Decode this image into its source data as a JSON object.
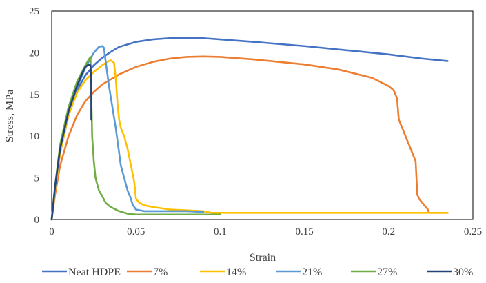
{
  "chart_data": {
    "type": "line",
    "title": "",
    "xlabel": "Strain",
    "ylabel": "Stress, MPa",
    "xlim": [
      0,
      0.25
    ],
    "ylim": [
      0,
      25
    ],
    "xticks": [
      0,
      0.05,
      0.1,
      0.15,
      0.2,
      0.25
    ],
    "xtick_labels": [
      "0",
      "0.05",
      "0.1",
      "0.15",
      "0.2",
      "0.25"
    ],
    "yticks": [
      0,
      5,
      10,
      15,
      20,
      25
    ],
    "ytick_labels": [
      "0",
      "5",
      "10",
      "15",
      "20",
      "25"
    ],
    "grid": false,
    "legend_position": "bottom",
    "series": [
      {
        "name": "Neat HDPE",
        "color": "#4472C4",
        "points": [
          [
            0,
            0
          ],
          [
            0.002,
            3.5
          ],
          [
            0.005,
            8
          ],
          [
            0.01,
            12.5
          ],
          [
            0.015,
            15.5
          ],
          [
            0.02,
            17.3
          ],
          [
            0.025,
            18.5
          ],
          [
            0.03,
            19.4
          ],
          [
            0.035,
            20.1
          ],
          [
            0.04,
            20.7
          ],
          [
            0.05,
            21.3
          ],
          [
            0.06,
            21.6
          ],
          [
            0.07,
            21.75
          ],
          [
            0.08,
            21.8
          ],
          [
            0.09,
            21.75
          ],
          [
            0.1,
            21.6
          ],
          [
            0.12,
            21.3
          ],
          [
            0.15,
            20.8
          ],
          [
            0.18,
            20.2
          ],
          [
            0.2,
            19.8
          ],
          [
            0.22,
            19.3
          ],
          [
            0.235,
            19.0
          ]
        ]
      },
      {
        "name": "7%",
        "color": "#ED7D31",
        "points": [
          [
            0,
            0
          ],
          [
            0.002,
            3
          ],
          [
            0.005,
            6.5
          ],
          [
            0.01,
            10
          ],
          [
            0.015,
            12.5
          ],
          [
            0.02,
            14.2
          ],
          [
            0.025,
            15.3
          ],
          [
            0.03,
            16.2
          ],
          [
            0.04,
            17.4
          ],
          [
            0.05,
            18.3
          ],
          [
            0.06,
            18.9
          ],
          [
            0.07,
            19.3
          ],
          [
            0.08,
            19.5
          ],
          [
            0.09,
            19.55
          ],
          [
            0.1,
            19.5
          ],
          [
            0.12,
            19.2
          ],
          [
            0.15,
            18.6
          ],
          [
            0.17,
            18.0
          ],
          [
            0.19,
            17.0
          ],
          [
            0.2,
            16.0
          ],
          [
            0.203,
            15.5
          ],
          [
            0.205,
            14.5
          ],
          [
            0.206,
            12
          ],
          [
            0.208,
            11
          ],
          [
            0.21,
            10
          ],
          [
            0.212,
            9
          ],
          [
            0.214,
            8
          ],
          [
            0.216,
            7
          ],
          [
            0.2165,
            5
          ],
          [
            0.217,
            3
          ],
          [
            0.218,
            2.5
          ],
          [
            0.22,
            2
          ],
          [
            0.222,
            1.5
          ],
          [
            0.223,
            1.3
          ],
          [
            0.224,
            0.8
          ],
          [
            0.235,
            0.8
          ]
        ]
      },
      {
        "name": "14%",
        "color": "#FFC000",
        "points": [
          [
            0,
            0
          ],
          [
            0.002,
            3.5
          ],
          [
            0.005,
            8
          ],
          [
            0.01,
            12.5
          ],
          [
            0.015,
            15.2
          ],
          [
            0.02,
            16.7
          ],
          [
            0.025,
            17.7
          ],
          [
            0.03,
            18.5
          ],
          [
            0.033,
            18.9
          ],
          [
            0.035,
            19.1
          ],
          [
            0.037,
            18.8
          ],
          [
            0.038,
            17
          ],
          [
            0.039,
            14
          ],
          [
            0.04,
            12
          ],
          [
            0.041,
            11
          ],
          [
            0.043,
            10
          ],
          [
            0.045,
            8.5
          ],
          [
            0.047,
            6.5
          ],
          [
            0.049,
            4.5
          ],
          [
            0.05,
            2.5
          ],
          [
            0.052,
            2
          ],
          [
            0.055,
            1.7
          ],
          [
            0.06,
            1.5
          ],
          [
            0.07,
            1.2
          ],
          [
            0.08,
            1.1
          ],
          [
            0.09,
            1.0
          ],
          [
            0.095,
            0.8
          ],
          [
            0.1,
            0.8
          ],
          [
            0.15,
            0.8
          ],
          [
            0.2,
            0.8
          ],
          [
            0.235,
            0.8
          ]
        ]
      },
      {
        "name": "21%",
        "color": "#5B9BD5",
        "points": [
          [
            0,
            0
          ],
          [
            0.002,
            3.8
          ],
          [
            0.005,
            8.5
          ],
          [
            0.01,
            13
          ],
          [
            0.015,
            15.8
          ],
          [
            0.02,
            18.2
          ],
          [
            0.025,
            20.0
          ],
          [
            0.028,
            20.7
          ],
          [
            0.03,
            20.8
          ],
          [
            0.031,
            20.6
          ],
          [
            0.032,
            19
          ],
          [
            0.034,
            16
          ],
          [
            0.036,
            13.5
          ],
          [
            0.038,
            11
          ],
          [
            0.04,
            8
          ],
          [
            0.041,
            6.5
          ],
          [
            0.043,
            5
          ],
          [
            0.045,
            3.5
          ],
          [
            0.047,
            2.5
          ],
          [
            0.048,
            1.8
          ],
          [
            0.05,
            1.2
          ],
          [
            0.055,
            1.0
          ],
          [
            0.06,
            1.0
          ],
          [
            0.08,
            1.0
          ],
          [
            0.09,
            0.9
          ]
        ]
      },
      {
        "name": "27%",
        "color": "#70AD47",
        "points": [
          [
            0,
            0
          ],
          [
            0.002,
            4
          ],
          [
            0.005,
            9
          ],
          [
            0.01,
            13.5
          ],
          [
            0.015,
            16.5
          ],
          [
            0.02,
            18.5
          ],
          [
            0.022,
            19.2
          ],
          [
            0.023,
            19.5
          ],
          [
            0.0235,
            15
          ],
          [
            0.024,
            10
          ],
          [
            0.025,
            7
          ],
          [
            0.026,
            5
          ],
          [
            0.028,
            3.5
          ],
          [
            0.03,
            2.8
          ],
          [
            0.032,
            2
          ],
          [
            0.035,
            1.5
          ],
          [
            0.04,
            1.0
          ],
          [
            0.045,
            0.7
          ],
          [
            0.05,
            0.6
          ],
          [
            0.06,
            0.6
          ],
          [
            0.08,
            0.6
          ],
          [
            0.1,
            0.6
          ]
        ]
      },
      {
        "name": "30%",
        "color": "#264478",
        "points": [
          [
            0,
            0
          ],
          [
            0.002,
            4
          ],
          [
            0.005,
            8.5
          ],
          [
            0.01,
            13
          ],
          [
            0.015,
            16
          ],
          [
            0.018,
            17.5
          ],
          [
            0.02,
            18.3
          ],
          [
            0.022,
            18.6
          ],
          [
            0.023,
            18.5
          ],
          [
            0.0235,
            16
          ],
          [
            0.0235,
            12
          ]
        ]
      }
    ]
  }
}
